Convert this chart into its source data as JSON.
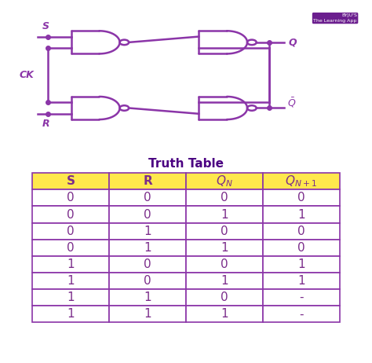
{
  "title": "Truth Table",
  "rows": [
    [
      "0",
      "0",
      "0",
      "0"
    ],
    [
      "0",
      "0",
      "1",
      "1"
    ],
    [
      "0",
      "1",
      "0",
      "0"
    ],
    [
      "0",
      "1",
      "1",
      "0"
    ],
    [
      "1",
      "0",
      "0",
      "1"
    ],
    [
      "1",
      "0",
      "1",
      "1"
    ],
    [
      "1",
      "1",
      "0",
      "-"
    ],
    [
      "1",
      "1",
      "1",
      "-"
    ]
  ],
  "header_bg": "#FFE84C",
  "header_text": "#7B2D8B",
  "cell_bg": "#FFFFFF",
  "cell_text": "#7B2D8B",
  "border_color": "#8B35A8",
  "gate_color": "#8B35A8",
  "bg_color": "#FFFFFF",
  "title_color": "#4B0082",
  "title_fontsize": 11,
  "cell_fontsize": 11,
  "header_fontsize": 11,
  "byju_bg": "#6B1E8E",
  "byju_text": "#FFFFFF"
}
